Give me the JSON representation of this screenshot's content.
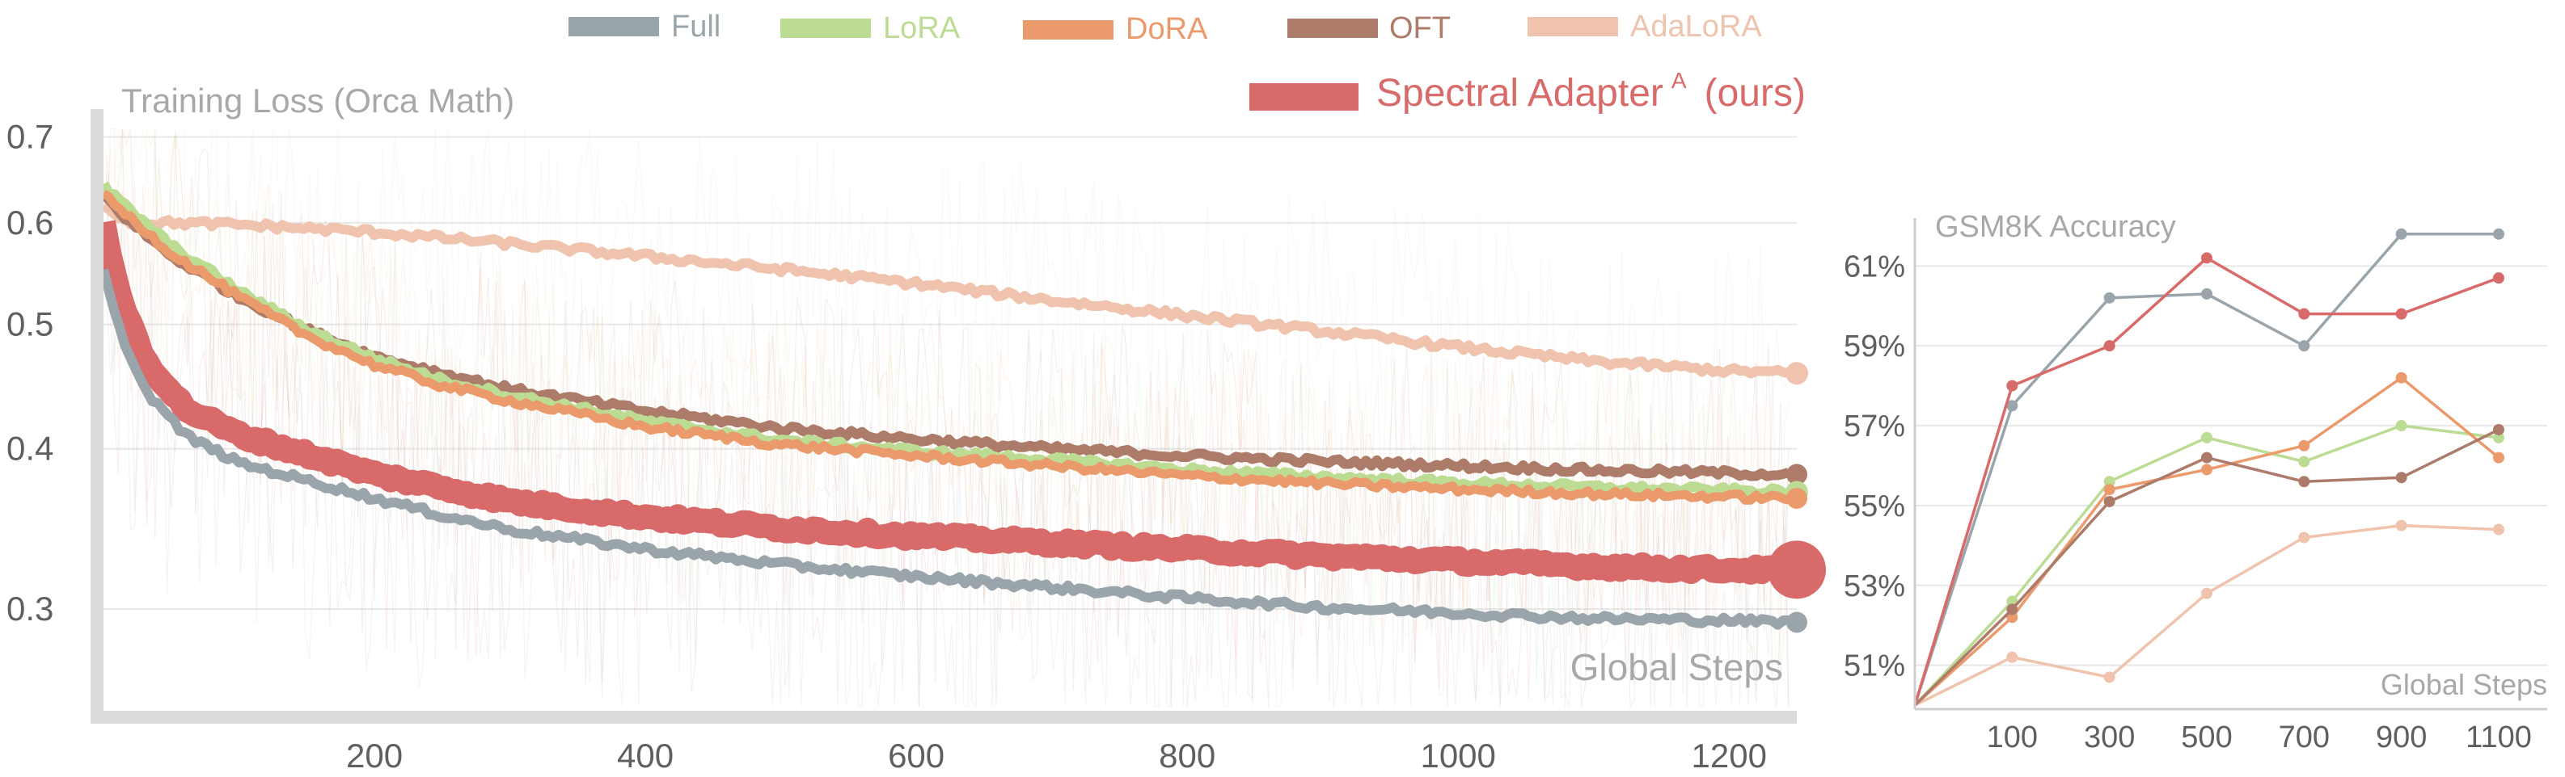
{
  "legend": [
    {
      "key": "full",
      "label": "Full",
      "color": "#9aa5ab"
    },
    {
      "key": "lora",
      "label": "LoRA",
      "color": "#bcdc94"
    },
    {
      "key": "dora",
      "label": "DoRA",
      "color": "#eb9a6c"
    },
    {
      "key": "oft",
      "label": "OFT",
      "color": "#ad7b69"
    },
    {
      "key": "adalora",
      "label": "AdaLoRA",
      "color": "#efc3ad"
    },
    {
      "key": "spectral",
      "label": "Spectral Adapter",
      "superscript": "A",
      "suffix": "(ours)",
      "color": "#d96a6a"
    }
  ],
  "chart_data": [
    {
      "type": "line",
      "title": "Training Loss (Orca Math)",
      "xlabel": "Global Steps",
      "ylabel": "",
      "xlim": [
        0,
        1250
      ],
      "ylim": [
        0.25,
        0.72
      ],
      "yscale": "log",
      "x_ticks": [
        200,
        400,
        600,
        800,
        1000,
        1200
      ],
      "y_ticks": [
        0.3,
        0.4,
        0.5,
        0.6,
        0.7
      ],
      "y_tick_labels": [
        "0.3",
        "0.4",
        "0.5",
        "0.6",
        "0.7"
      ],
      "grid": true,
      "legend_position": "top",
      "series": [
        {
          "name": "AdaLoRA",
          "color": "#efc3ad",
          "x": [
            0,
            20,
            50,
            100,
            200,
            300,
            400,
            500,
            600,
            700,
            800,
            900,
            1000,
            1100,
            1200,
            1250
          ],
          "y": [
            0.62,
            0.6,
            0.6,
            0.598,
            0.59,
            0.578,
            0.565,
            0.552,
            0.538,
            0.522,
            0.508,
            0.494,
            0.48,
            0.468,
            0.46,
            0.458
          ]
        },
        {
          "name": "OFT",
          "color": "#ad7b69",
          "x": [
            0,
            20,
            50,
            100,
            150,
            200,
            250,
            300,
            400,
            500,
            600,
            700,
            800,
            900,
            1000,
            1100,
            1200,
            1250
          ],
          "y": [
            0.63,
            0.6,
            0.565,
            0.525,
            0.495,
            0.472,
            0.458,
            0.445,
            0.428,
            0.415,
            0.407,
            0.4,
            0.395,
            0.391,
            0.388,
            0.385,
            0.383,
            0.382
          ]
        },
        {
          "name": "LoRA",
          "color": "#bcdc94",
          "x": [
            0,
            20,
            50,
            100,
            150,
            200,
            250,
            300,
            400,
            500,
            600,
            700,
            800,
            900,
            1000,
            1100,
            1200,
            1250
          ],
          "y": [
            0.64,
            0.612,
            0.575,
            0.53,
            0.495,
            0.47,
            0.452,
            0.44,
            0.42,
            0.406,
            0.398,
            0.392,
            0.385,
            0.38,
            0.376,
            0.373,
            0.371,
            0.37
          ]
        },
        {
          "name": "DoRA",
          "color": "#eb9a6c",
          "x": [
            0,
            20,
            50,
            100,
            150,
            200,
            250,
            300,
            400,
            500,
            600,
            700,
            800,
            900,
            1000,
            1100,
            1200,
            1250
          ],
          "y": [
            0.63,
            0.605,
            0.568,
            0.525,
            0.49,
            0.465,
            0.448,
            0.436,
            0.416,
            0.403,
            0.395,
            0.388,
            0.381,
            0.376,
            0.372,
            0.369,
            0.367,
            0.366
          ]
        },
        {
          "name": "Spectral Adapter^A (ours)",
          "color": "#d96a6a",
          "x": [
            0,
            10,
            30,
            60,
            100,
            150,
            200,
            300,
            400,
            500,
            600,
            700,
            800,
            900,
            1000,
            1100,
            1200,
            1250
          ],
          "y": [
            0.6,
            0.53,
            0.47,
            0.43,
            0.41,
            0.396,
            0.382,
            0.364,
            0.354,
            0.347,
            0.342,
            0.338,
            0.334,
            0.33,
            0.327,
            0.324,
            0.322,
            0.322
          ]
        },
        {
          "name": "Full",
          "color": "#9aa5ab",
          "x": [
            0,
            10,
            30,
            60,
            100,
            150,
            200,
            250,
            300,
            400,
            500,
            600,
            700,
            800,
            900,
            1000,
            1100,
            1200,
            1250
          ],
          "y": [
            0.55,
            0.5,
            0.445,
            0.41,
            0.39,
            0.378,
            0.366,
            0.355,
            0.346,
            0.334,
            0.325,
            0.318,
            0.312,
            0.306,
            0.301,
            0.298,
            0.295,
            0.294,
            0.293
          ]
        }
      ]
    },
    {
      "type": "line",
      "title": "GSM8K Accuracy",
      "xlabel": "Global Steps",
      "ylabel": "",
      "categories": [
        "0",
        "100",
        "300",
        "500",
        "700",
        "900",
        "1100"
      ],
      "x_tick_labels": [
        "",
        "100",
        "300",
        "500",
        "700",
        "900",
        "1100"
      ],
      "ylim": [
        49.9,
        62.2
      ],
      "y_ticks": [
        51,
        53,
        55,
        57,
        59,
        61
      ],
      "y_tick_labels": [
        "51%",
        "53%",
        "55%",
        "57%",
        "59%",
        "61%"
      ],
      "grid": true,
      "series": [
        {
          "name": "AdaLoRA",
          "color": "#efc3ad",
          "values": [
            50.0,
            51.2,
            50.7,
            52.8,
            54.2,
            54.5,
            54.4
          ]
        },
        {
          "name": "LoRA",
          "color": "#bcdc94",
          "values": [
            50.0,
            52.6,
            55.6,
            56.7,
            56.1,
            57.0,
            56.7
          ]
        },
        {
          "name": "DoRA",
          "color": "#eb9a6c",
          "values": [
            50.0,
            52.2,
            55.4,
            55.9,
            56.5,
            58.2,
            56.2
          ]
        },
        {
          "name": "OFT",
          "color": "#ad7b69",
          "values": [
            50.0,
            52.4,
            55.1,
            56.2,
            55.6,
            55.7,
            56.9
          ]
        },
        {
          "name": "Full",
          "color": "#9aa5ab",
          "values": [
            50.0,
            57.5,
            60.2,
            60.3,
            59.0,
            61.8,
            61.8
          ]
        },
        {
          "name": "Spectral Adapter^A (ours)",
          "color": "#d96a6a",
          "values": [
            50.0,
            58.0,
            59.0,
            61.2,
            59.8,
            59.8,
            60.7
          ]
        }
      ]
    }
  ]
}
